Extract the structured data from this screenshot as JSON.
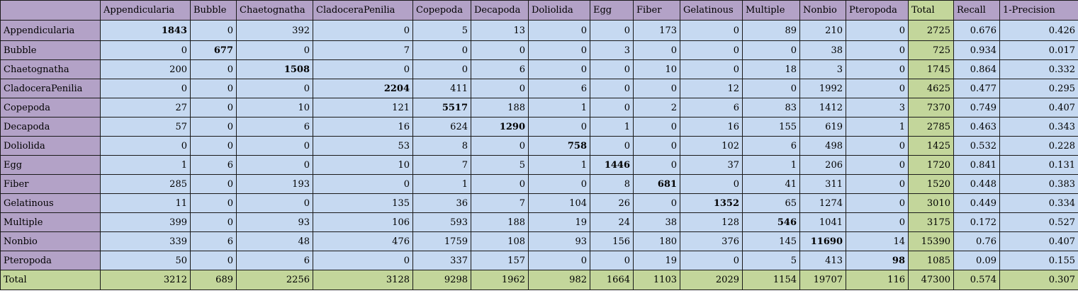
{
  "table": {
    "corner": "",
    "columns": [
      "Appendicularia",
      "Bubble",
      "Chaetognatha",
      "CladoceraPenilia",
      "Copepoda",
      "Decapoda",
      "Doliolida",
      "Egg",
      "Fiber",
      "Gelatinous",
      "Multiple",
      "Nonbio",
      "Pteropoda",
      "Total",
      "Recall",
      "1-Precision"
    ],
    "rows": [
      {
        "label": "Appendicularia",
        "values": [
          "1843",
          "0",
          "392",
          "0",
          "5",
          "13",
          "0",
          "0",
          "173",
          "0",
          "89",
          "210",
          "0"
        ],
        "total": "2725",
        "recall": "0.676",
        "one_minus_precision": "0.426"
      },
      {
        "label": "Bubble",
        "values": [
          "0",
          "677",
          "0",
          "7",
          "0",
          "0",
          "0",
          "3",
          "0",
          "0",
          "0",
          "38",
          "0"
        ],
        "total": "725",
        "recall": "0.934",
        "one_minus_precision": "0.017"
      },
      {
        "label": "Chaetognatha",
        "values": [
          "200",
          "0",
          "1508",
          "0",
          "0",
          "6",
          "0",
          "0",
          "10",
          "0",
          "18",
          "3",
          "0"
        ],
        "total": "1745",
        "recall": "0.864",
        "one_minus_precision": "0.332"
      },
      {
        "label": "CladoceraPenilia",
        "values": [
          "0",
          "0",
          "0",
          "2204",
          "411",
          "0",
          "6",
          "0",
          "0",
          "12",
          "0",
          "1992",
          "0"
        ],
        "total": "4625",
        "recall": "0.477",
        "one_minus_precision": "0.295"
      },
      {
        "label": "Copepoda",
        "values": [
          "27",
          "0",
          "10",
          "121",
          "5517",
          "188",
          "1",
          "0",
          "2",
          "6",
          "83",
          "1412",
          "3"
        ],
        "total": "7370",
        "recall": "0.749",
        "one_minus_precision": "0.407"
      },
      {
        "label": "Decapoda",
        "values": [
          "57",
          "0",
          "6",
          "16",
          "624",
          "1290",
          "0",
          "1",
          "0",
          "16",
          "155",
          "619",
          "1"
        ],
        "total": "2785",
        "recall": "0.463",
        "one_minus_precision": "0.343"
      },
      {
        "label": "Doliolida",
        "values": [
          "0",
          "0",
          "0",
          "53",
          "8",
          "0",
          "758",
          "0",
          "0",
          "102",
          "6",
          "498",
          "0"
        ],
        "total": "1425",
        "recall": "0.532",
        "one_minus_precision": "0.228"
      },
      {
        "label": "Egg",
        "values": [
          "1",
          "6",
          "0",
          "10",
          "7",
          "5",
          "1",
          "1446",
          "0",
          "37",
          "1",
          "206",
          "0"
        ],
        "total": "1720",
        "recall": "0.841",
        "one_minus_precision": "0.131"
      },
      {
        "label": "Fiber",
        "values": [
          "285",
          "0",
          "193",
          "0",
          "1",
          "0",
          "0",
          "8",
          "681",
          "0",
          "41",
          "311",
          "0"
        ],
        "total": "1520",
        "recall": "0.448",
        "one_minus_precision": "0.383"
      },
      {
        "label": "Gelatinous",
        "values": [
          "11",
          "0",
          "0",
          "135",
          "36",
          "7",
          "104",
          "26",
          "0",
          "1352",
          "65",
          "1274",
          "0"
        ],
        "total": "3010",
        "recall": "0.449",
        "one_minus_precision": "0.334"
      },
      {
        "label": "Multiple",
        "values": [
          "399",
          "0",
          "93",
          "106",
          "593",
          "188",
          "19",
          "24",
          "38",
          "128",
          "546",
          "1041",
          "0"
        ],
        "total": "3175",
        "recall": "0.172",
        "one_minus_precision": "0.527"
      },
      {
        "label": "Nonbio",
        "values": [
          "339",
          "6",
          "48",
          "476",
          "1759",
          "108",
          "93",
          "156",
          "180",
          "376",
          "145",
          "11690",
          "14"
        ],
        "total": "15390",
        "recall": "0.76",
        "one_minus_precision": "0.407"
      },
      {
        "label": "Pteropoda",
        "values": [
          "50",
          "0",
          "6",
          "0",
          "337",
          "157",
          "0",
          "0",
          "19",
          "0",
          "5",
          "413",
          "98"
        ],
        "total": "1085",
        "recall": "0.09",
        "one_minus_precision": "0.155"
      }
    ],
    "total_row": {
      "label": "Total",
      "values": [
        "3212",
        "689",
        "2256",
        "3128",
        "9298",
        "1962",
        "982",
        "1664",
        "1103",
        "2029",
        "1154",
        "19707",
        "116"
      ],
      "total": "47300",
      "recall": "0.574",
      "one_minus_precision": "0.307"
    },
    "colors": {
      "header_purple": "#b3a2c7",
      "cell_blue": "#c6d9f1",
      "total_green": "#c3d69b",
      "border": "#1a1a1a"
    }
  }
}
